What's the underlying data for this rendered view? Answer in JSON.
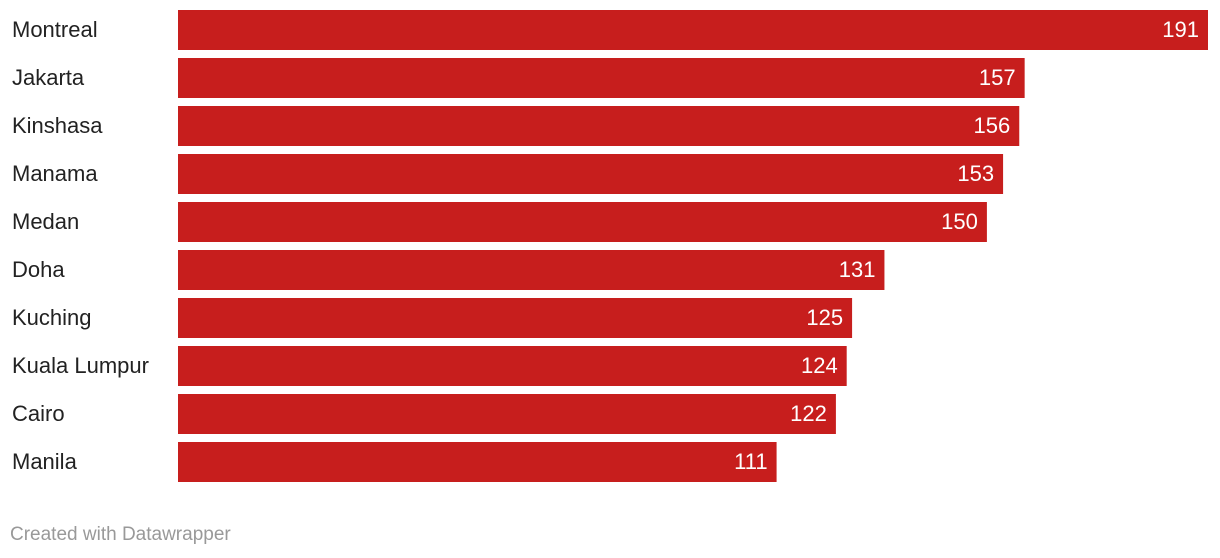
{
  "chart_data": {
    "type": "bar",
    "orientation": "horizontal",
    "categories": [
      "Montreal",
      "Jakarta",
      "Kinshasa",
      "Manama",
      "Medan",
      "Doha",
      "Kuching",
      "Kuala Lumpur",
      "Cairo",
      "Manila"
    ],
    "values": [
      191,
      157,
      156,
      153,
      150,
      131,
      125,
      124,
      122,
      111
    ],
    "color": "#c71e1d",
    "footer": "Created with Datawrapper"
  }
}
